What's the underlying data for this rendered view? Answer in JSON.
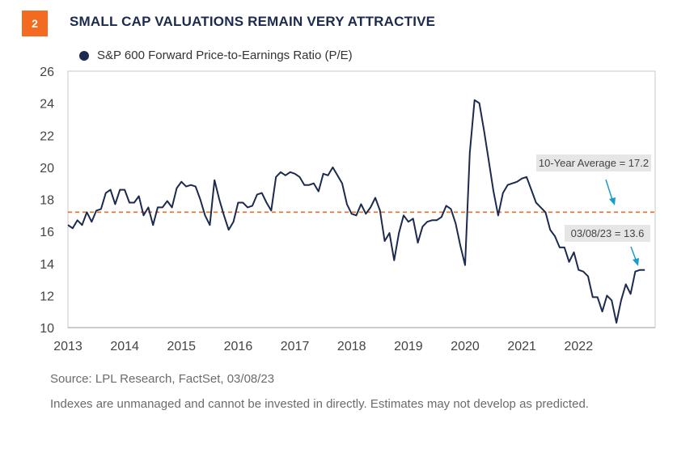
{
  "figure_number": "2",
  "title": "SMALL CAP VALUATIONS REMAIN VERY ATTRACTIVE",
  "source": "Source: LPL Research, FactSet,  03/08/23",
  "disclaimer": "Indexes are unmanaged and cannot be invested in directly. Estimates may not develop as predicted.",
  "colors": {
    "accent": "#f26b21",
    "navy": "#1b2a4e",
    "callout_bg": "#e6e6e6",
    "arrow": "#1a9bc9",
    "plot_bg": "#ffffff"
  },
  "chart_data": {
    "type": "line",
    "series": [
      {
        "name": "S&P 600 Forward Price-to-Earnings Ratio (P/E)",
        "x": [
          2013.0,
          2013.083,
          2013.167,
          2013.25,
          2013.333,
          2013.417,
          2013.5,
          2013.583,
          2013.667,
          2013.75,
          2013.833,
          2013.917,
          2014.0,
          2014.083,
          2014.167,
          2014.25,
          2014.333,
          2014.417,
          2014.5,
          2014.583,
          2014.667,
          2014.75,
          2014.833,
          2014.917,
          2015.0,
          2015.083,
          2015.167,
          2015.25,
          2015.333,
          2015.417,
          2015.5,
          2015.583,
          2015.667,
          2015.75,
          2015.833,
          2015.917,
          2016.0,
          2016.083,
          2016.167,
          2016.25,
          2016.333,
          2016.417,
          2016.5,
          2016.583,
          2016.667,
          2016.75,
          2016.833,
          2016.917,
          2017.0,
          2017.083,
          2017.167,
          2017.25,
          2017.333,
          2017.417,
          2017.5,
          2017.583,
          2017.667,
          2017.75,
          2017.833,
          2017.917,
          2018.0,
          2018.083,
          2018.167,
          2018.25,
          2018.333,
          2018.417,
          2018.5,
          2018.583,
          2018.667,
          2018.75,
          2018.833,
          2018.917,
          2019.0,
          2019.083,
          2019.167,
          2019.25,
          2019.333,
          2019.417,
          2019.5,
          2019.583,
          2019.667,
          2019.75,
          2019.833,
          2019.917,
          2020.0,
          2020.083,
          2020.167,
          2020.25,
          2020.333,
          2020.417,
          2020.5,
          2020.583,
          2020.667,
          2020.75,
          2020.833,
          2020.917,
          2021.0,
          2021.083,
          2021.167,
          2021.25,
          2021.333,
          2021.417,
          2021.5,
          2021.583,
          2021.667,
          2021.75,
          2021.833,
          2021.917,
          2022.0,
          2022.083,
          2022.167,
          2022.25,
          2022.333,
          2022.417,
          2022.5,
          2022.583,
          2022.667,
          2022.75,
          2022.833,
          2022.917,
          2023.0,
          2023.083,
          2023.167
        ],
        "values": [
          16.4,
          16.2,
          16.7,
          16.4,
          17.2,
          16.6,
          17.3,
          17.4,
          18.4,
          18.6,
          17.7,
          18.6,
          18.6,
          17.8,
          17.8,
          18.2,
          17.0,
          17.5,
          16.4,
          17.5,
          17.5,
          17.9,
          17.5,
          18.7,
          19.1,
          18.8,
          18.9,
          18.8,
          18.0,
          17.0,
          16.4,
          19.2,
          18.0,
          17.0,
          16.1,
          16.6,
          17.8,
          17.8,
          17.5,
          17.6,
          18.3,
          18.4,
          17.8,
          17.3,
          19.4,
          19.7,
          19.5,
          19.7,
          19.6,
          19.4,
          18.9,
          18.9,
          19.0,
          18.5,
          19.6,
          19.5,
          20.0,
          19.5,
          19.0,
          17.7,
          17.1,
          17.0,
          17.7,
          17.1,
          17.5,
          18.1,
          17.3,
          15.4,
          15.9,
          14.2,
          15.9,
          17.0,
          16.6,
          16.8,
          15.3,
          16.3,
          16.6,
          16.7,
          16.7,
          16.9,
          17.6,
          17.4,
          16.5,
          15.1,
          13.9,
          20.9,
          24.2,
          24.0,
          22.3,
          20.4,
          18.5,
          17.0,
          18.4,
          18.9,
          19.0,
          19.1,
          19.3,
          19.4,
          18.6,
          17.8,
          17.5,
          17.2,
          16.1,
          15.7,
          15.0,
          15.0,
          14.1,
          14.7,
          13.6,
          13.5,
          13.2,
          11.9,
          11.9,
          11.0,
          12.0,
          11.7,
          10.3,
          11.7,
          12.7,
          12.1,
          13.5,
          13.6,
          13.6
        ]
      }
    ],
    "reference_line": {
      "label": "10-Year Average = 17.2",
      "value": 17.2
    },
    "annotation": {
      "label": "03/08/23 = 13.6",
      "x": 2023.167,
      "y": 13.6
    },
    "xlabel": "",
    "ylabel": "",
    "x_ticks": [
      "2013",
      "2014",
      "2015",
      "2016",
      "2017",
      "2018",
      "2019",
      "2020",
      "2021",
      "2022"
    ],
    "y_ticks": [
      "10",
      "12",
      "14",
      "16",
      "18",
      "20",
      "22",
      "24",
      "26"
    ],
    "xlim": [
      2013.0,
      2023.35
    ],
    "ylim": [
      10,
      26
    ],
    "grid": false,
    "legend_position": "top-left"
  }
}
